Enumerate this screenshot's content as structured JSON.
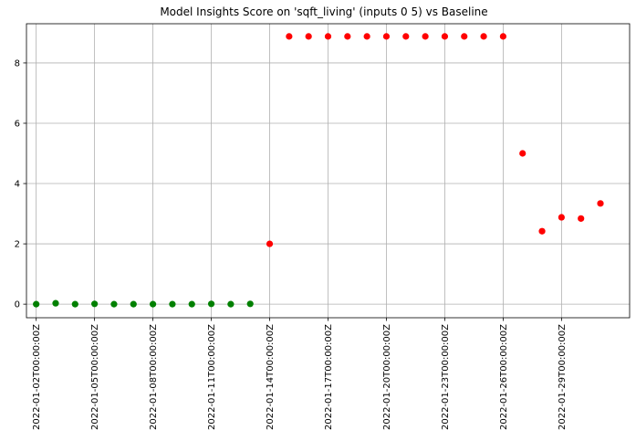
{
  "chart_data": {
    "type": "scatter",
    "title": "Model Insights Score on 'sqft_living' (inputs 0 5) vs Baseline",
    "xlabel": "",
    "ylabel": "",
    "x_range": [
      "2022-01-01T12:00:00Z",
      "2022-02-01T12:00:00Z"
    ],
    "ylim": [
      -0.45,
      9.3
    ],
    "grid": true,
    "x_ticks": [
      "2022-01-02T00:00:00Z",
      "2022-01-05T00:00:00Z",
      "2022-01-08T00:00:00Z",
      "2022-01-11T00:00:00Z",
      "2022-01-14T00:00:00Z",
      "2022-01-17T00:00:00Z",
      "2022-01-20T00:00:00Z",
      "2022-01-23T00:00:00Z",
      "2022-01-26T00:00:00Z",
      "2022-01-29T00:00:00Z"
    ],
    "y_ticks": [
      "0",
      "2",
      "4",
      "6",
      "8"
    ],
    "series": [
      {
        "color": "#008000",
        "points": [
          {
            "x": "2022-01-02",
            "y": 0.0
          },
          {
            "x": "2022-01-03",
            "y": 0.03
          },
          {
            "x": "2022-01-04",
            "y": 0.0
          },
          {
            "x": "2022-01-05",
            "y": 0.01
          },
          {
            "x": "2022-01-06",
            "y": 0.0
          },
          {
            "x": "2022-01-07",
            "y": 0.0
          },
          {
            "x": "2022-01-08",
            "y": 0.0
          },
          {
            "x": "2022-01-09",
            "y": 0.0
          },
          {
            "x": "2022-01-10",
            "y": 0.0
          },
          {
            "x": "2022-01-11",
            "y": 0.01
          },
          {
            "x": "2022-01-12",
            "y": 0.0
          },
          {
            "x": "2022-01-13",
            "y": 0.01
          }
        ]
      },
      {
        "color": "#ff0000",
        "points": [
          {
            "x": "2022-01-14",
            "y": 2.0
          },
          {
            "x": "2022-01-15",
            "y": 8.88
          },
          {
            "x": "2022-01-16",
            "y": 8.88
          },
          {
            "x": "2022-01-17",
            "y": 8.88
          },
          {
            "x": "2022-01-18",
            "y": 8.88
          },
          {
            "x": "2022-01-19",
            "y": 8.88
          },
          {
            "x": "2022-01-20",
            "y": 8.88
          },
          {
            "x": "2022-01-21",
            "y": 8.88
          },
          {
            "x": "2022-01-22",
            "y": 8.88
          },
          {
            "x": "2022-01-23",
            "y": 8.88
          },
          {
            "x": "2022-01-24",
            "y": 8.88
          },
          {
            "x": "2022-01-25",
            "y": 8.88
          },
          {
            "x": "2022-01-26",
            "y": 8.88
          },
          {
            "x": "2022-01-27",
            "y": 5.0
          },
          {
            "x": "2022-01-28",
            "y": 2.42
          },
          {
            "x": "2022-01-29",
            "y": 2.88
          },
          {
            "x": "2022-01-30",
            "y": 2.84
          },
          {
            "x": "2022-01-31",
            "y": 3.34
          }
        ]
      }
    ]
  }
}
